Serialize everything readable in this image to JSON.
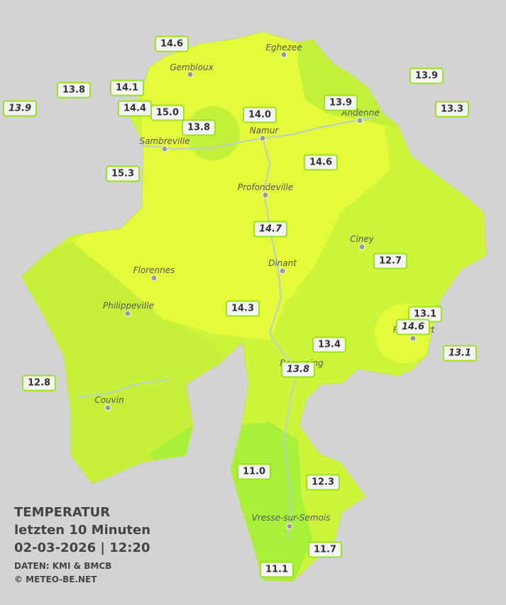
{
  "title": {
    "line1": "TEMPERATUR",
    "line2": "letzten 10 Minuten",
    "line3": "02-03-2026  |  12:20",
    "source": "DATEN: KMI & BMCB",
    "copyright": "© METEO-BE.NET"
  },
  "cities": [
    "Eghezee",
    "Gembloux",
    "Andenne",
    "Namur",
    "Sambreville",
    "Profondeville",
    "Ciney",
    "Florennes",
    "Dinant",
    "Philippeville",
    "Couvin",
    "Vresse-sur-Semois",
    "Beauraing",
    "Rochefort"
  ],
  "stations": [
    {
      "value": "14.6"
    },
    {
      "value": "13.8"
    },
    {
      "value": "14.1"
    },
    {
      "value": "13.9",
      "italic": true
    },
    {
      "value": "14.4"
    },
    {
      "value": "15.0"
    },
    {
      "value": "13.8"
    },
    {
      "value": "14.0"
    },
    {
      "value": "13.9"
    },
    {
      "value": "13.9"
    },
    {
      "value": "13.3"
    },
    {
      "value": "15.3"
    },
    {
      "value": "14.6"
    },
    {
      "value": "14.7",
      "italic": true
    },
    {
      "value": "12.7"
    },
    {
      "value": "14.3"
    },
    {
      "value": "13.1"
    },
    {
      "value": "14.6",
      "italic": true
    },
    {
      "value": "13.4"
    },
    {
      "value": "13.1",
      "italic": true
    },
    {
      "value": "13.8",
      "italic": true
    },
    {
      "value": "12.8"
    },
    {
      "value": "11.0"
    },
    {
      "value": "12.3"
    },
    {
      "value": "11.7"
    },
    {
      "value": "11.1"
    }
  ]
}
